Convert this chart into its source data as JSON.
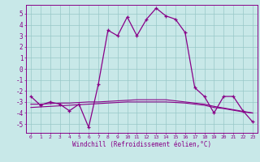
{
  "title": "",
  "xlabel": "Windchill (Refroidissement éolien,°C)",
  "background_color": "#c8e8e8",
  "grid_color": "#98c8c8",
  "line_color": "#880088",
  "x": [
    0,
    1,
    2,
    3,
    4,
    5,
    6,
    7,
    8,
    9,
    10,
    11,
    12,
    13,
    14,
    15,
    16,
    17,
    18,
    19,
    20,
    21,
    22,
    23
  ],
  "y_main": [
    -2.5,
    -3.3,
    -3.0,
    -3.2,
    -3.8,
    -3.2,
    -5.3,
    -1.4,
    3.5,
    3.0,
    4.7,
    3.0,
    4.5,
    5.5,
    4.8,
    4.5,
    3.3,
    -1.7,
    -2.5,
    -4.0,
    -2.5,
    -2.5,
    -3.8,
    -4.8
  ],
  "y_line1": [
    -3.2,
    -3.2,
    -3.15,
    -3.1,
    -3.1,
    -3.05,
    -3.0,
    -3.0,
    -2.95,
    -2.9,
    -2.85,
    -2.8,
    -2.8,
    -2.8,
    -2.8,
    -2.9,
    -3.0,
    -3.1,
    -3.2,
    -3.4,
    -3.55,
    -3.7,
    -3.85,
    -4.0
  ],
  "y_line2": [
    -3.5,
    -3.45,
    -3.4,
    -3.35,
    -3.3,
    -3.25,
    -3.2,
    -3.15,
    -3.1,
    -3.05,
    -3.0,
    -3.0,
    -3.0,
    -3.0,
    -3.0,
    -3.05,
    -3.1,
    -3.2,
    -3.3,
    -3.5,
    -3.6,
    -3.75,
    -3.9,
    -4.0
  ],
  "ylim": [
    -5.8,
    5.8
  ],
  "yticks": [
    -5,
    -4,
    -3,
    -2,
    -1,
    0,
    1,
    2,
    3,
    4,
    5
  ],
  "xlim": [
    -0.5,
    23.5
  ]
}
